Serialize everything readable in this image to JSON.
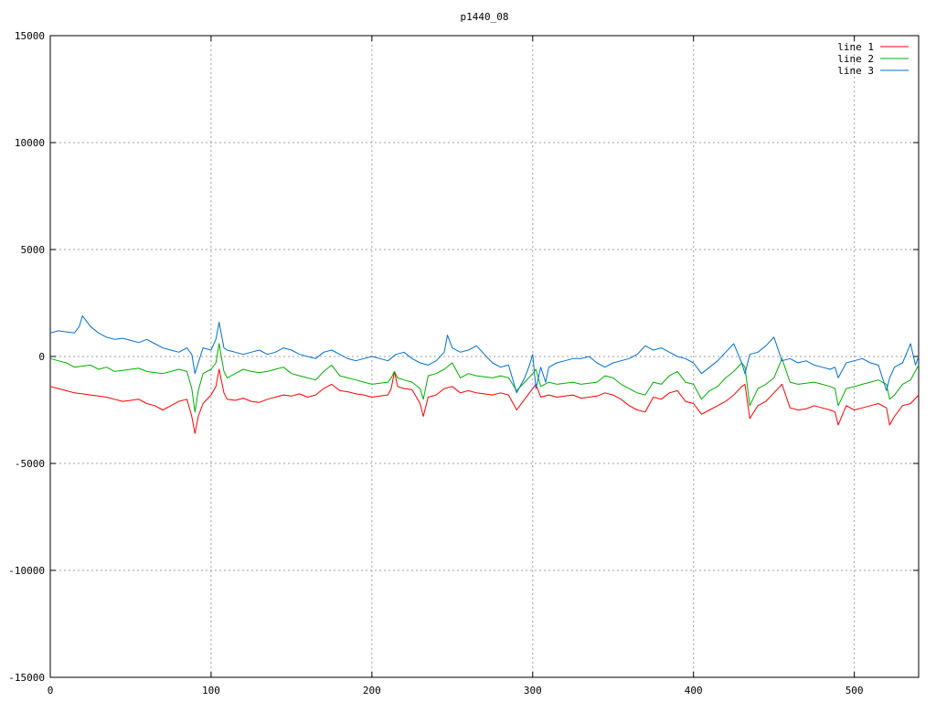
{
  "chart_data": {
    "type": "line",
    "title": "p1440_08",
    "xlabel": "",
    "ylabel": "",
    "xlim": [
      0,
      540
    ],
    "ylim": [
      -15000,
      15000
    ],
    "x_ticks": [
      0,
      100,
      200,
      300,
      400,
      500
    ],
    "y_ticks": [
      -15000,
      -10000,
      -5000,
      0,
      5000,
      10000,
      15000
    ],
    "x_tick_labels": [
      "0",
      "100",
      "200",
      "300",
      "400",
      "500"
    ],
    "y_tick_labels": [
      "-15000",
      "-10000",
      "-5000",
      "0",
      "5000",
      "10000",
      "15000"
    ],
    "grid": true,
    "legend_position": "top-right",
    "series": [
      {
        "name": "line 1",
        "color": "#ff0000",
        "x": [
          0,
          5,
          10,
          15,
          20,
          25,
          30,
          35,
          40,
          45,
          50,
          55,
          60,
          65,
          70,
          75,
          80,
          85,
          88,
          90,
          92,
          95,
          100,
          103,
          105,
          108,
          110,
          115,
          120,
          125,
          130,
          135,
          140,
          145,
          150,
          155,
          160,
          165,
          170,
          175,
          180,
          185,
          190,
          195,
          200,
          205,
          210,
          212,
          214,
          216,
          220,
          225,
          230,
          232,
          235,
          240,
          245,
          250,
          255,
          260,
          265,
          270,
          275,
          280,
          285,
          290,
          295,
          300,
          302,
          305,
          310,
          315,
          320,
          325,
          330,
          335,
          340,
          345,
          350,
          355,
          360,
          365,
          370,
          375,
          380,
          385,
          390,
          395,
          400,
          405,
          410,
          415,
          420,
          425,
          430,
          432,
          435,
          440,
          445,
          450,
          455,
          460,
          465,
          470,
          475,
          480,
          485,
          488,
          490,
          495,
          500,
          505,
          510,
          515,
          520,
          522,
          525,
          530,
          535,
          540
        ],
        "y": [
          -1400,
          -1500,
          -1600,
          -1700,
          -1750,
          -1800,
          -1850,
          -1900,
          -2000,
          -2100,
          -2050,
          -2000,
          -2200,
          -2300,
          -2500,
          -2300,
          -2100,
          -2000,
          -2800,
          -3600,
          -2800,
          -2200,
          -1800,
          -1400,
          -600,
          -1700,
          -2000,
          -2050,
          -1950,
          -2100,
          -2150,
          -2000,
          -1900,
          -1800,
          -1850,
          -1750,
          -1900,
          -1800,
          -1500,
          -1300,
          -1600,
          -1650,
          -1750,
          -1800,
          -1900,
          -1850,
          -1800,
          -1500,
          -700,
          -1400,
          -1500,
          -1550,
          -2200,
          -2800,
          -1900,
          -1800,
          -1500,
          -1400,
          -1700,
          -1600,
          -1700,
          -1750,
          -1800,
          -1700,
          -1800,
          -2500,
          -2000,
          -1500,
          -1300,
          -1900,
          -1800,
          -1900,
          -1850,
          -1800,
          -1950,
          -1900,
          -1850,
          -1700,
          -1800,
          -2000,
          -2300,
          -2500,
          -2600,
          -1900,
          -2000,
          -1700,
          -1600,
          -2100,
          -2200,
          -2700,
          -2500,
          -2300,
          -2100,
          -1800,
          -1400,
          -1300,
          -2900,
          -2300,
          -2100,
          -1700,
          -1300,
          -2400,
          -2500,
          -2450,
          -2300,
          -2400,
          -2500,
          -2600,
          -3200,
          -2300,
          -2500,
          -2400,
          -2300,
          -2200,
          -2400,
          -3200,
          -2800,
          -2300,
          -2200,
          -1800
        ],
        "note": ""
      },
      {
        "name": "line 2",
        "color": "#00b000",
        "x": [
          0,
          5,
          10,
          15,
          20,
          25,
          30,
          35,
          40,
          45,
          50,
          55,
          60,
          65,
          70,
          75,
          80,
          85,
          88,
          90,
          92,
          95,
          100,
          103,
          105,
          108,
          110,
          115,
          120,
          125,
          130,
          135,
          140,
          145,
          150,
          155,
          160,
          165,
          170,
          175,
          180,
          185,
          190,
          195,
          200,
          205,
          210,
          212,
          214,
          216,
          220,
          225,
          230,
          232,
          235,
          240,
          245,
          250,
          255,
          260,
          265,
          270,
          275,
          280,
          285,
          290,
          295,
          300,
          302,
          305,
          310,
          315,
          320,
          325,
          330,
          335,
          340,
          345,
          350,
          355,
          360,
          365,
          370,
          375,
          380,
          385,
          390,
          395,
          400,
          405,
          410,
          415,
          420,
          425,
          430,
          432,
          435,
          440,
          445,
          450,
          455,
          460,
          465,
          470,
          475,
          480,
          485,
          488,
          490,
          495,
          500,
          505,
          510,
          515,
          520,
          522,
          525,
          530,
          535,
          540
        ],
        "y": [
          -100,
          -200,
          -300,
          -500,
          -450,
          -400,
          -600,
          -500,
          -700,
          -650,
          -600,
          -550,
          -700,
          -750,
          -800,
          -700,
          -600,
          -700,
          -1500,
          -2600,
          -1600,
          -800,
          -600,
          -300,
          600,
          -700,
          -1000,
          -800,
          -600,
          -700,
          -750,
          -700,
          -600,
          -500,
          -800,
          -900,
          -1000,
          -1100,
          -700,
          -400,
          -900,
          -1000,
          -1100,
          -1200,
          -1300,
          -1250,
          -1200,
          -1000,
          -700,
          -1000,
          -1100,
          -1200,
          -1500,
          -2000,
          -900,
          -800,
          -600,
          -300,
          -1000,
          -800,
          -900,
          -950,
          -1000,
          -900,
          -1000,
          -1600,
          -1200,
          -800,
          -600,
          -1400,
          -1200,
          -1300,
          -1250,
          -1200,
          -1300,
          -1250,
          -1200,
          -900,
          -1000,
          -1300,
          -1500,
          -1700,
          -1800,
          -1200,
          -1300,
          -900,
          -700,
          -1200,
          -1300,
          -2000,
          -1600,
          -1400,
          -1000,
          -700,
          -300,
          -500,
          -2300,
          -1500,
          -1300,
          -1000,
          -100,
          -1200,
          -1300,
          -1250,
          -1200,
          -1300,
          -1400,
          -1500,
          -2300,
          -1500,
          -1400,
          -1300,
          -1200,
          -1100,
          -1300,
          -2000,
          -1800,
          -1300,
          -1100,
          -400
        ],
        "note": ""
      },
      {
        "name": "line 3",
        "color": "#0070d0",
        "x": [
          0,
          5,
          10,
          15,
          18,
          20,
          22,
          25,
          30,
          35,
          40,
          45,
          50,
          55,
          60,
          65,
          70,
          75,
          80,
          85,
          88,
          90,
          92,
          95,
          100,
          103,
          105,
          108,
          110,
          115,
          120,
          125,
          130,
          135,
          140,
          145,
          150,
          155,
          160,
          165,
          170,
          175,
          180,
          185,
          190,
          195,
          200,
          205,
          210,
          215,
          220,
          225,
          230,
          235,
          240,
          245,
          247,
          250,
          255,
          260,
          265,
          270,
          275,
          280,
          285,
          290,
          295,
          298,
          300,
          302,
          305,
          308,
          310,
          315,
          320,
          325,
          330,
          335,
          340,
          345,
          350,
          355,
          360,
          365,
          370,
          375,
          380,
          385,
          390,
          395,
          400,
          405,
          410,
          415,
          420,
          425,
          430,
          432,
          435,
          440,
          445,
          450,
          455,
          460,
          465,
          470,
          475,
          480,
          485,
          488,
          490,
          495,
          500,
          505,
          510,
          515,
          520,
          522,
          525,
          530,
          535,
          538,
          540
        ],
        "y": [
          1100,
          1200,
          1150,
          1100,
          1400,
          1900,
          1700,
          1400,
          1100,
          900,
          800,
          850,
          750,
          650,
          800,
          600,
          400,
          300,
          200,
          400,
          100,
          -800,
          -300,
          400,
          300,
          800,
          1600,
          400,
          300,
          200,
          100,
          200,
          300,
          100,
          200,
          400,
          300,
          100,
          0,
          -100,
          200,
          300,
          100,
          -100,
          -200,
          -100,
          0,
          -100,
          -200,
          100,
          200,
          -100,
          -300,
          -400,
          -200,
          200,
          1000,
          400,
          200,
          300,
          500,
          100,
          -300,
          -500,
          -400,
          -1700,
          -1000,
          -400,
          100,
          -1500,
          -500,
          -1200,
          -500,
          -300,
          -200,
          -100,
          -100,
          0,
          -300,
          -500,
          -300,
          -200,
          -100,
          100,
          500,
          300,
          400,
          200,
          0,
          -100,
          -300,
          -800,
          -500,
          -200,
          200,
          600,
          -300,
          -800,
          100,
          200,
          500,
          900,
          -200,
          -100,
          -300,
          -200,
          -400,
          -500,
          -600,
          -500,
          -1000,
          -300,
          -200,
          -100,
          -300,
          -400,
          -1600,
          -1000,
          -500,
          -300,
          600,
          -400,
          0
        ]
      }
    ]
  }
}
